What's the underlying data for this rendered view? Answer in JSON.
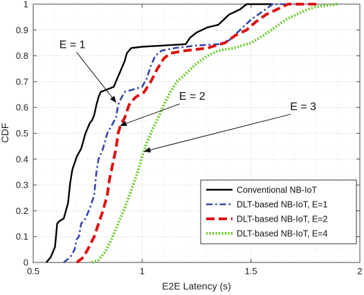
{
  "chart_data": {
    "type": "line",
    "title": "",
    "xlabel": "E2E Latency (s)",
    "ylabel": "CDF",
    "xlim": [
      0.5,
      2
    ],
    "ylim": [
      0,
      1
    ],
    "xticks": [
      "0.5",
      "1",
      "1.5",
      "2"
    ],
    "yticks": [
      "0",
      "0.1",
      "0.2",
      "0.3",
      "0.4",
      "0.5",
      "0.6",
      "0.7",
      "0.8",
      "0.9",
      "1"
    ],
    "grid": true,
    "legend_position": "bottom-right",
    "series": [
      {
        "name": "Conventional NB-IoT",
        "color": "#000000",
        "style": "solid",
        "points": [
          [
            0.56,
            0.0
          ],
          [
            0.58,
            0.02
          ],
          [
            0.6,
            0.06
          ],
          [
            0.61,
            0.15
          ],
          [
            0.62,
            0.16
          ],
          [
            0.64,
            0.17
          ],
          [
            0.65,
            0.2
          ],
          [
            0.66,
            0.23
          ],
          [
            0.67,
            0.31
          ],
          [
            0.68,
            0.36
          ],
          [
            0.7,
            0.41
          ],
          [
            0.72,
            0.44
          ],
          [
            0.73,
            0.47
          ],
          [
            0.74,
            0.5
          ],
          [
            0.75,
            0.52
          ],
          [
            0.76,
            0.54
          ],
          [
            0.77,
            0.55
          ],
          [
            0.78,
            0.57
          ],
          [
            0.79,
            0.61
          ],
          [
            0.8,
            0.64
          ],
          [
            0.81,
            0.66
          ],
          [
            0.84,
            0.67
          ],
          [
            0.87,
            0.68
          ],
          [
            0.89,
            0.72
          ],
          [
            0.9,
            0.74
          ],
          [
            0.92,
            0.78
          ],
          [
            0.93,
            0.81
          ],
          [
            0.95,
            0.83
          ],
          [
            1.0,
            0.835
          ],
          [
            1.1,
            0.84
          ],
          [
            1.2,
            0.845
          ],
          [
            1.22,
            0.87
          ],
          [
            1.25,
            0.89
          ],
          [
            1.3,
            0.91
          ],
          [
            1.35,
            0.92
          ],
          [
            1.4,
            0.96
          ],
          [
            1.45,
            0.98
          ],
          [
            1.48,
            1.0
          ],
          [
            1.6,
            1.0
          ]
        ]
      },
      {
        "name": "DLT-based NB-IoT, E=1",
        "color": "#3344aa",
        "style": "dashdot",
        "points": [
          [
            0.64,
            0.0
          ],
          [
            0.67,
            0.02
          ],
          [
            0.69,
            0.05
          ],
          [
            0.7,
            0.09
          ],
          [
            0.71,
            0.1
          ],
          [
            0.72,
            0.15
          ],
          [
            0.74,
            0.17
          ],
          [
            0.76,
            0.21
          ],
          [
            0.78,
            0.26
          ],
          [
            0.79,
            0.35
          ],
          [
            0.8,
            0.4
          ],
          [
            0.82,
            0.44
          ],
          [
            0.84,
            0.5
          ],
          [
            0.86,
            0.53
          ],
          [
            0.88,
            0.56
          ],
          [
            0.89,
            0.61
          ],
          [
            0.9,
            0.63
          ],
          [
            0.92,
            0.66
          ],
          [
            0.96,
            0.67
          ],
          [
            1.0,
            0.68
          ],
          [
            1.02,
            0.71
          ],
          [
            1.04,
            0.76
          ],
          [
            1.06,
            0.8
          ],
          [
            1.09,
            0.82
          ],
          [
            1.15,
            0.83
          ],
          [
            1.25,
            0.84
          ],
          [
            1.35,
            0.845
          ],
          [
            1.4,
            0.86
          ],
          [
            1.45,
            0.9
          ],
          [
            1.5,
            0.94
          ],
          [
            1.55,
            0.97
          ],
          [
            1.6,
            1.0
          ],
          [
            1.7,
            1.0
          ]
        ]
      },
      {
        "name": "DLT-based NB-IoT, E=2",
        "color": "#dd1111",
        "style": "dashed",
        "points": [
          [
            0.7,
            0.0
          ],
          [
            0.73,
            0.02
          ],
          [
            0.75,
            0.05
          ],
          [
            0.78,
            0.1
          ],
          [
            0.8,
            0.15
          ],
          [
            0.82,
            0.2
          ],
          [
            0.84,
            0.26
          ],
          [
            0.85,
            0.32
          ],
          [
            0.87,
            0.4
          ],
          [
            0.88,
            0.44
          ],
          [
            0.89,
            0.5
          ],
          [
            0.9,
            0.53
          ],
          [
            0.92,
            0.56
          ],
          [
            0.94,
            0.61
          ],
          [
            0.97,
            0.64
          ],
          [
            1.01,
            0.66
          ],
          [
            1.04,
            0.7
          ],
          [
            1.07,
            0.75
          ],
          [
            1.1,
            0.79
          ],
          [
            1.13,
            0.81
          ],
          [
            1.2,
            0.82
          ],
          [
            1.3,
            0.83
          ],
          [
            1.38,
            0.85
          ],
          [
            1.43,
            0.88
          ],
          [
            1.48,
            0.9
          ],
          [
            1.52,
            0.93
          ],
          [
            1.57,
            0.96
          ],
          [
            1.62,
            0.98
          ],
          [
            1.67,
            1.0
          ],
          [
            1.8,
            1.0
          ]
        ]
      },
      {
        "name": "DLT-based NB-IoT, E=4",
        "color": "#66cc22",
        "style": "dotted",
        "points": [
          [
            0.77,
            0.0
          ],
          [
            0.8,
            0.01
          ],
          [
            0.83,
            0.04
          ],
          [
            0.86,
            0.09
          ],
          [
            0.89,
            0.15
          ],
          [
            0.92,
            0.21
          ],
          [
            0.95,
            0.28
          ],
          [
            0.98,
            0.35
          ],
          [
            1.0,
            0.41
          ],
          [
            1.02,
            0.46
          ],
          [
            1.05,
            0.52
          ],
          [
            1.08,
            0.57
          ],
          [
            1.1,
            0.61
          ],
          [
            1.13,
            0.66
          ],
          [
            1.16,
            0.7
          ],
          [
            1.2,
            0.73
          ],
          [
            1.25,
            0.77
          ],
          [
            1.3,
            0.8
          ],
          [
            1.35,
            0.82
          ],
          [
            1.42,
            0.83
          ],
          [
            1.5,
            0.85
          ],
          [
            1.56,
            0.88
          ],
          [
            1.61,
            0.91
          ],
          [
            1.66,
            0.94
          ],
          [
            1.71,
            0.96
          ],
          [
            1.76,
            0.98
          ],
          [
            1.8,
            0.99
          ],
          [
            1.9,
            1.0
          ]
        ]
      }
    ],
    "annotations": [
      {
        "text": "E = 1",
        "text_xy": [
          0.68,
          0.83
        ],
        "arrow_to": [
          0.88,
          0.62
        ]
      },
      {
        "text": "E = 2",
        "text_xy": [
          1.23,
          0.63
        ],
        "arrow_to": [
          0.9,
          0.53
        ]
      },
      {
        "text": "E = 3",
        "text_xy": [
          1.74,
          0.59
        ],
        "arrow_to": [
          1.01,
          0.43
        ]
      }
    ]
  }
}
